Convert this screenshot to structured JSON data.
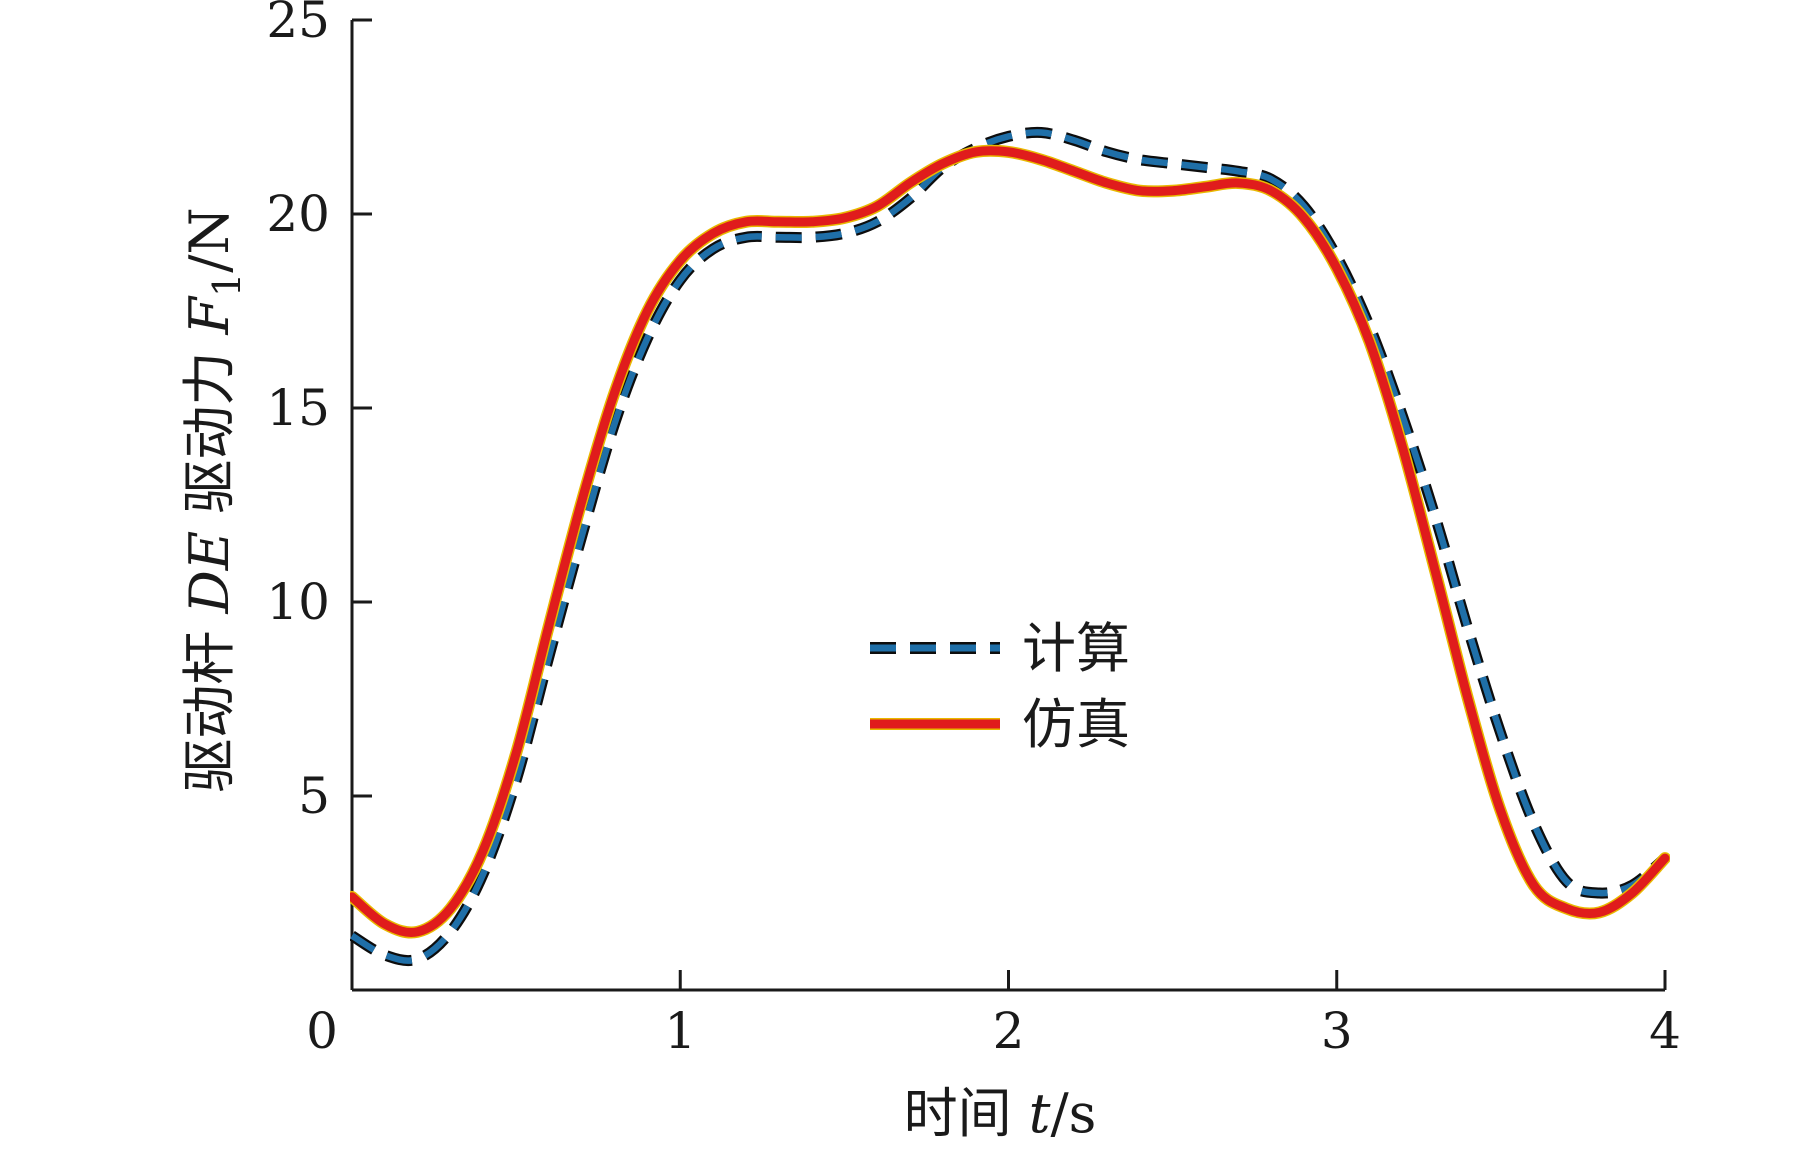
{
  "chart_data": {
    "type": "line",
    "title": "",
    "xlabel_parts": [
      "时间 ",
      "t",
      "/s"
    ],
    "ylabel_parts": [
      "驱动杆 ",
      "DE",
      " 驱动力 ",
      "F",
      "1",
      "/N"
    ],
    "xlim": [
      0,
      4
    ],
    "ylim": [
      0,
      25
    ],
    "x_ticks": [
      0,
      1,
      2,
      3,
      4
    ],
    "y_ticks": [
      5,
      10,
      15,
      20,
      25
    ],
    "x_tick_labels": [
      "0",
      "1",
      "2",
      "3",
      "4"
    ],
    "y_tick_labels": [
      "5",
      "10",
      "15",
      "20",
      "25"
    ],
    "grid": false,
    "legend_position": "center",
    "series": [
      {
        "name": "计算",
        "style": "dashed",
        "color": "#1f6fa8",
        "outline": "#0d0d0d",
        "x": [
          0,
          0.1,
          0.2,
          0.3,
          0.4,
          0.5,
          0.6,
          0.7,
          0.8,
          0.9,
          1.0,
          1.1,
          1.2,
          1.3,
          1.4,
          1.5,
          1.6,
          1.7,
          1.8,
          1.9,
          2.0,
          2.1,
          2.2,
          2.3,
          2.4,
          2.5,
          2.6,
          2.7,
          2.8,
          2.9,
          3.0,
          3.1,
          3.2,
          3.3,
          3.4,
          3.5,
          3.6,
          3.7,
          3.8,
          3.9,
          4.0
        ],
        "y": [
          1.4,
          0.9,
          0.8,
          1.5,
          3.0,
          5.4,
          8.6,
          11.7,
          14.6,
          16.8,
          18.3,
          19.1,
          19.4,
          19.4,
          19.4,
          19.5,
          19.8,
          20.4,
          21.2,
          21.7,
          22.0,
          22.1,
          21.9,
          21.6,
          21.4,
          21.3,
          21.2,
          21.1,
          20.9,
          20.2,
          18.9,
          17.1,
          14.8,
          12.2,
          9.3,
          6.6,
          4.3,
          2.8,
          2.5,
          2.7,
          3.4
        ]
      },
      {
        "name": "仿真",
        "style": "solid",
        "color": "#e01c1c",
        "outline": "#e8b800",
        "x": [
          0,
          0.1,
          0.2,
          0.3,
          0.4,
          0.5,
          0.6,
          0.7,
          0.8,
          0.9,
          1.0,
          1.1,
          1.2,
          1.3,
          1.4,
          1.5,
          1.6,
          1.7,
          1.8,
          1.9,
          2.0,
          2.1,
          2.2,
          2.3,
          2.4,
          2.5,
          2.6,
          2.7,
          2.8,
          2.9,
          3.0,
          3.1,
          3.2,
          3.3,
          3.4,
          3.5,
          3.6,
          3.7,
          3.8,
          3.9,
          4.0
        ],
        "y": [
          2.4,
          1.7,
          1.5,
          2.1,
          3.6,
          6.1,
          9.4,
          12.6,
          15.4,
          17.5,
          18.8,
          19.5,
          19.8,
          19.8,
          19.8,
          19.9,
          20.2,
          20.8,
          21.3,
          21.6,
          21.6,
          21.4,
          21.1,
          20.8,
          20.6,
          20.6,
          20.7,
          20.8,
          20.6,
          19.9,
          18.6,
          16.7,
          14.0,
          10.8,
          7.5,
          4.6,
          2.7,
          2.1,
          2.0,
          2.5,
          3.4
        ]
      }
    ]
  }
}
